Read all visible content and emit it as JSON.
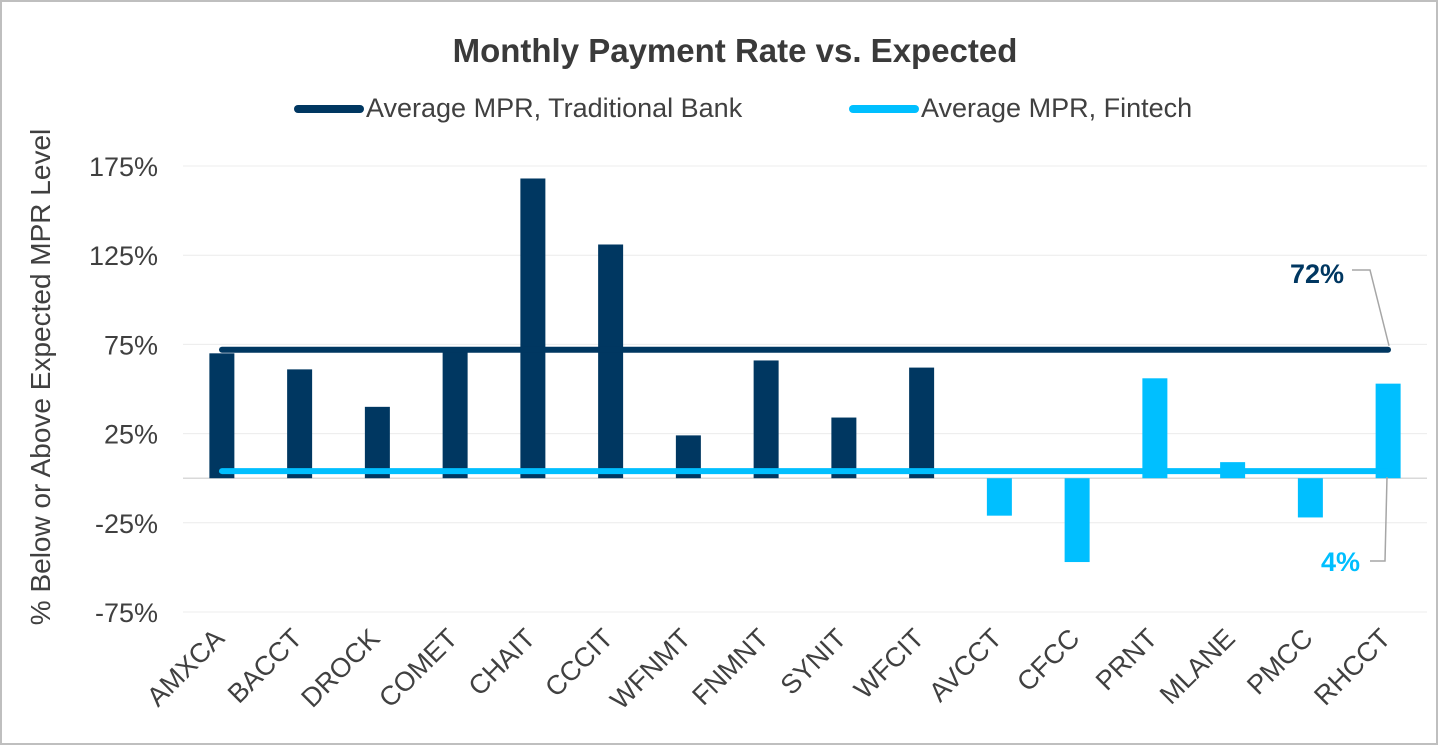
{
  "chart_data": {
    "type": "bar",
    "title": "Monthly Payment Rate vs. Expected",
    "ylabel": "% Below or Above Expected MPR Level",
    "ylim": [
      -75,
      175
    ],
    "yticks": [
      175,
      125,
      75,
      25,
      -25,
      -75
    ],
    "ytick_labels": [
      "175%",
      "125%",
      "75%",
      "25%",
      "-25%",
      "-75%"
    ],
    "grid": true,
    "legend_position": "top",
    "categories": [
      "AMXCA",
      "BACCT",
      "DROCK",
      "COMET",
      "CHAIT",
      "CCCIT",
      "WFNMT",
      "FNMNT",
      "SYNIT",
      "WFCIT",
      "AVCCT",
      "CFCC",
      "PRNT",
      "MLANE",
      "PMCC",
      "RHCCT"
    ],
    "series": [
      {
        "name": "Traditional Bank",
        "color": "#003761",
        "values": [
          70,
          61,
          40,
          72,
          168,
          131,
          24,
          66,
          34,
          62,
          null,
          null,
          null,
          null,
          null,
          null
        ]
      },
      {
        "name": "Fintech",
        "color": "#00BFFF",
        "values": [
          null,
          null,
          null,
          null,
          null,
          null,
          null,
          null,
          null,
          null,
          -21,
          -47,
          56,
          9,
          -22,
          53
        ]
      }
    ],
    "reference_lines": [
      {
        "name": "Average MPR, Traditional Bank",
        "value": 72,
        "label": "72%",
        "color": "#003761"
      },
      {
        "name": "Average MPR, Fintech",
        "value": 4,
        "label": "4%",
        "color": "#00BFFF"
      }
    ]
  }
}
